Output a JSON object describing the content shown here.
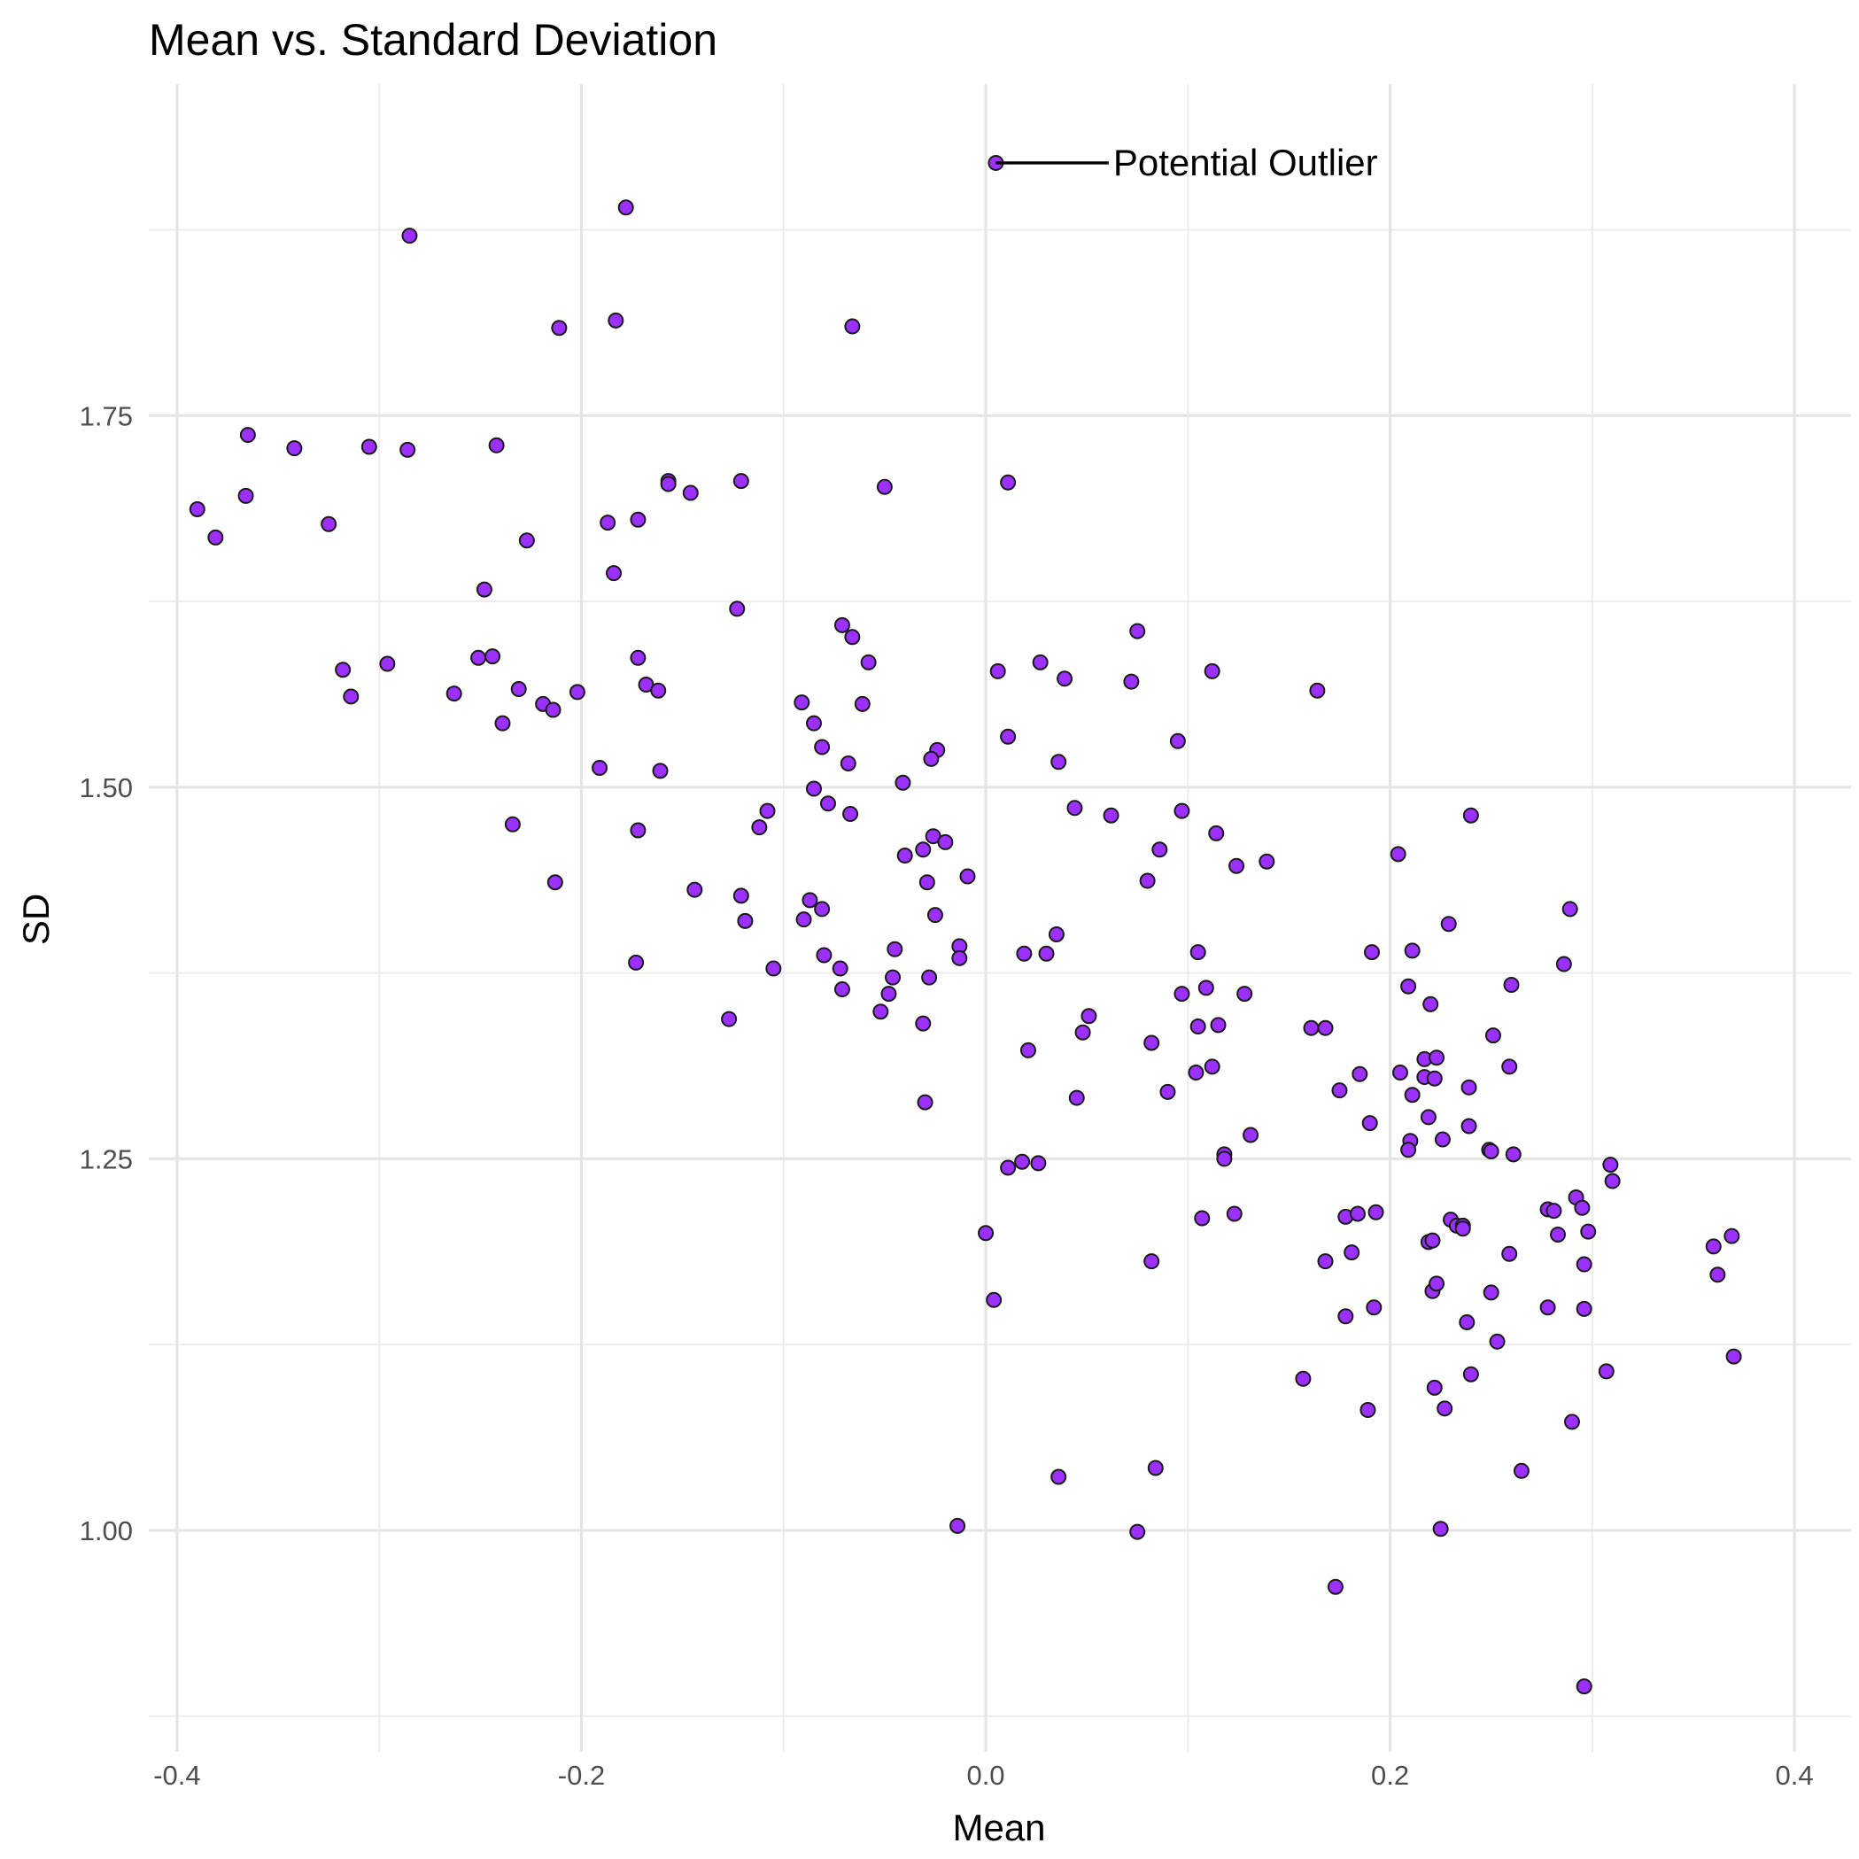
{
  "chart_data": {
    "type": "scatter",
    "title": "Mean vs. Standard Deviation",
    "xlabel": "Mean",
    "ylabel": "SD",
    "xlim": [
      -0.414,
      0.428
    ],
    "ylim": [
      0.851,
      1.973
    ],
    "x_ticks": [
      -0.4,
      -0.2,
      0.0,
      0.2,
      0.4
    ],
    "x_tick_labels": [
      "-0.4",
      "-0.2",
      "0.0",
      "0.2",
      "0.4"
    ],
    "y_ticks": [
      1.0,
      1.25,
      1.5,
      1.75
    ],
    "y_tick_labels": [
      "1.00",
      "1.25",
      "1.50",
      "1.75"
    ],
    "grid": true,
    "legend": "none",
    "point_color": "#9b30ff",
    "point_stroke": "#1a1a1a",
    "annotation": {
      "text": "Potential Outlier",
      "x": 0.005,
      "y": 1.92,
      "label_x": 0.063
    },
    "points": [
      [
        0.005,
        1.92
      ],
      [
        -0.178,
        1.89
      ],
      [
        -0.285,
        1.871
      ],
      [
        -0.183,
        1.814
      ],
      [
        -0.211,
        1.809
      ],
      [
        -0.066,
        1.81
      ],
      [
        -0.365,
        1.737
      ],
      [
        -0.342,
        1.728
      ],
      [
        -0.305,
        1.729
      ],
      [
        -0.286,
        1.727
      ],
      [
        -0.242,
        1.73
      ],
      [
        -0.39,
        1.687
      ],
      [
        -0.381,
        1.668
      ],
      [
        -0.366,
        1.696
      ],
      [
        -0.325,
        1.677
      ],
      [
        -0.157,
        1.706
      ],
      [
        -0.157,
        1.704
      ],
      [
        -0.146,
        1.698
      ],
      [
        -0.121,
        1.706
      ],
      [
        -0.05,
        1.702
      ],
      [
        0.011,
        1.705
      ],
      [
        -0.172,
        1.68
      ],
      [
        -0.187,
        1.678
      ],
      [
        -0.227,
        1.666
      ],
      [
        -0.184,
        1.644
      ],
      [
        -0.248,
        1.633
      ],
      [
        -0.123,
        1.62
      ],
      [
        -0.071,
        1.609
      ],
      [
        -0.066,
        1.601
      ],
      [
        0.075,
        1.605
      ],
      [
        -0.318,
        1.579
      ],
      [
        -0.296,
        1.583
      ],
      [
        -0.251,
        1.587
      ],
      [
        -0.244,
        1.588
      ],
      [
        -0.172,
        1.587
      ],
      [
        -0.058,
        1.584
      ],
      [
        0.027,
        1.584
      ],
      [
        0.006,
        1.578
      ],
      [
        0.039,
        1.573
      ],
      [
        0.072,
        1.571
      ],
      [
        0.112,
        1.578
      ],
      [
        0.164,
        1.565
      ],
      [
        -0.314,
        1.561
      ],
      [
        -0.263,
        1.563
      ],
      [
        -0.231,
        1.566
      ],
      [
        -0.219,
        1.556
      ],
      [
        -0.214,
        1.552
      ],
      [
        -0.202,
        1.564
      ],
      [
        -0.168,
        1.569
      ],
      [
        -0.162,
        1.565
      ],
      [
        -0.091,
        1.557
      ],
      [
        -0.061,
        1.556
      ],
      [
        -0.239,
        1.543
      ],
      [
        -0.085,
        1.543
      ],
      [
        -0.081,
        1.527
      ],
      [
        -0.024,
        1.525
      ],
      [
        -0.027,
        1.519
      ],
      [
        0.011,
        1.534
      ],
      [
        -0.068,
        1.516
      ],
      [
        0.036,
        1.517
      ],
      [
        0.095,
        1.531
      ],
      [
        -0.191,
        1.513
      ],
      [
        -0.161,
        1.511
      ],
      [
        -0.041,
        1.503
      ],
      [
        -0.085,
        1.499
      ],
      [
        -0.078,
        1.489
      ],
      [
        -0.067,
        1.482
      ],
      [
        -0.108,
        1.484
      ],
      [
        -0.112,
        1.473
      ],
      [
        -0.172,
        1.471
      ],
      [
        -0.234,
        1.475
      ],
      [
        0.044,
        1.486
      ],
      [
        0.062,
        1.481
      ],
      [
        0.097,
        1.484
      ],
      [
        0.24,
        1.481
      ],
      [
        -0.026,
        1.467
      ],
      [
        -0.02,
        1.463
      ],
      [
        -0.031,
        1.458
      ],
      [
        -0.04,
        1.454
      ],
      [
        0.086,
        1.458
      ],
      [
        0.114,
        1.469
      ],
      [
        0.124,
        1.447
      ],
      [
        0.139,
        1.45
      ],
      [
        0.204,
        1.455
      ],
      [
        -0.213,
        1.436
      ],
      [
        -0.144,
        1.431
      ],
      [
        -0.121,
        1.427
      ],
      [
        -0.087,
        1.424
      ],
      [
        -0.081,
        1.418
      ],
      [
        -0.029,
        1.436
      ],
      [
        -0.009,
        1.44
      ],
      [
        0.08,
        1.437
      ],
      [
        -0.119,
        1.41
      ],
      [
        -0.09,
        1.411
      ],
      [
        -0.025,
        1.414
      ],
      [
        0.035,
        1.401
      ],
      [
        0.229,
        1.408
      ],
      [
        0.289,
        1.418
      ],
      [
        -0.173,
        1.382
      ],
      [
        -0.105,
        1.378
      ],
      [
        -0.08,
        1.387
      ],
      [
        -0.072,
        1.378
      ],
      [
        -0.045,
        1.391
      ],
      [
        -0.013,
        1.393
      ],
      [
        -0.013,
        1.385
      ],
      [
        0.019,
        1.388
      ],
      [
        0.03,
        1.388
      ],
      [
        0.105,
        1.389
      ],
      [
        0.191,
        1.389
      ],
      [
        0.211,
        1.39
      ],
      [
        0.286,
        1.381
      ],
      [
        -0.071,
        1.364
      ],
      [
        -0.046,
        1.372
      ],
      [
        -0.048,
        1.361
      ],
      [
        -0.028,
        1.372
      ],
      [
        0.097,
        1.361
      ],
      [
        0.109,
        1.365
      ],
      [
        0.128,
        1.361
      ],
      [
        0.209,
        1.366
      ],
      [
        0.26,
        1.367
      ],
      [
        0.22,
        1.354
      ],
      [
        -0.127,
        1.344
      ],
      [
        -0.052,
        1.349
      ],
      [
        -0.031,
        1.341
      ],
      [
        0.051,
        1.346
      ],
      [
        0.048,
        1.335
      ],
      [
        0.105,
        1.339
      ],
      [
        0.115,
        1.34
      ],
      [
        0.161,
        1.338
      ],
      [
        0.168,
        1.338
      ],
      [
        0.251,
        1.333
      ],
      [
        0.021,
        1.323
      ],
      [
        0.082,
        1.328
      ],
      [
        0.104,
        1.308
      ],
      [
        0.112,
        1.312
      ],
      [
        0.185,
        1.307
      ],
      [
        0.205,
        1.308
      ],
      [
        0.217,
        1.317
      ],
      [
        0.223,
        1.318
      ],
      [
        0.217,
        1.305
      ],
      [
        0.222,
        1.304
      ],
      [
        0.259,
        1.312
      ],
      [
        -0.03,
        1.288
      ],
      [
        0.045,
        1.291
      ],
      [
        0.09,
        1.295
      ],
      [
        0.175,
        1.296
      ],
      [
        0.211,
        1.293
      ],
      [
        0.239,
        1.298
      ],
      [
        0.131,
        1.266
      ],
      [
        0.19,
        1.274
      ],
      [
        0.219,
        1.278
      ],
      [
        0.239,
        1.272
      ],
      [
        0.21,
        1.262
      ],
      [
        0.209,
        1.256
      ],
      [
        0.226,
        1.263
      ],
      [
        0.118,
        1.253
      ],
      [
        0.118,
        1.25
      ],
      [
        0.249,
        1.256
      ],
      [
        0.25,
        1.255
      ],
      [
        0.261,
        1.253
      ],
      [
        0.011,
        1.244
      ],
      [
        0.018,
        1.248
      ],
      [
        0.026,
        1.247
      ],
      [
        0.309,
        1.246
      ],
      [
        0.31,
        1.235
      ],
      [
        0.107,
        1.21
      ],
      [
        0.123,
        1.213
      ],
      [
        0.178,
        1.211
      ],
      [
        0.184,
        1.213
      ],
      [
        0.193,
        1.214
      ],
      [
        0.23,
        1.209
      ],
      [
        0.233,
        1.205
      ],
      [
        0.236,
        1.205
      ],
      [
        0.236,
        1.203
      ],
      [
        0.278,
        1.216
      ],
      [
        0.281,
        1.215
      ],
      [
        0.292,
        1.224
      ],
      [
        0.295,
        1.217
      ],
      [
        0.0,
        1.2
      ],
      [
        0.219,
        1.194
      ],
      [
        0.221,
        1.195
      ],
      [
        0.283,
        1.199
      ],
      [
        0.298,
        1.201
      ],
      [
        0.36,
        1.191
      ],
      [
        0.369,
        1.198
      ],
      [
        0.082,
        1.181
      ],
      [
        0.168,
        1.181
      ],
      [
        0.181,
        1.187
      ],
      [
        0.259,
        1.186
      ],
      [
        0.296,
        1.179
      ],
      [
        0.362,
        1.172
      ],
      [
        0.004,
        1.155
      ],
      [
        0.221,
        1.161
      ],
      [
        0.223,
        1.166
      ],
      [
        0.25,
        1.16
      ],
      [
        0.178,
        1.144
      ],
      [
        0.192,
        1.15
      ],
      [
        0.238,
        1.14
      ],
      [
        0.278,
        1.15
      ],
      [
        0.296,
        1.149
      ],
      [
        0.253,
        1.127
      ],
      [
        0.37,
        1.117
      ],
      [
        0.157,
        1.102
      ],
      [
        0.222,
        1.096
      ],
      [
        0.24,
        1.105
      ],
      [
        0.307,
        1.107
      ],
      [
        0.189,
        1.081
      ],
      [
        0.227,
        1.082
      ],
      [
        0.29,
        1.073
      ],
      [
        0.036,
        1.036
      ],
      [
        0.084,
        1.042
      ],
      [
        0.265,
        1.04
      ],
      [
        -0.014,
        1.003
      ],
      [
        0.075,
        0.999
      ],
      [
        0.225,
        1.001
      ],
      [
        0.173,
        0.962
      ],
      [
        0.296,
        0.895
      ]
    ]
  }
}
